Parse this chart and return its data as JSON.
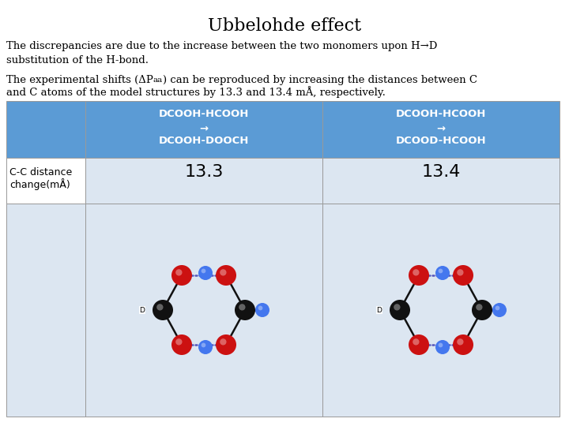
{
  "title": "Ubbelohde effect",
  "paragraph1": "The discrepancies are due to the increase between the two monomers upon H→D\nsubstitution of the H-bond.",
  "para2_prefix": "The experimental shifts (ΔP",
  "para2_sub": "aa",
  "para2_suffix": ") can be reproduced by increasing the distances between C\nand C atoms of the model structures by 13.3 and 13.4 mÅ, respectively.",
  "col1_header_line1": "DCOOH-HCOOH",
  "col1_header_line2": "→",
  "col1_header_line3": "DCOOH-DOOCH",
  "col2_header_line1": "DCOOH-HCOOH",
  "col2_header_line2": "→",
  "col2_header_line3": "DCOOD-HCOOH",
  "row_label_line1": "C-C distance",
  "row_label_line2": "change(mÅ)",
  "value1": "13.3",
  "value2": "13.4",
  "header_bg": "#5b9bd5",
  "header_text": "#ffffff",
  "row_bg": "#dce6f1",
  "image_bg": "#dce6f1",
  "title_fontsize": 16,
  "body_fontsize": 9.5,
  "table_header_fontsize": 9.5,
  "table_value_fontsize": 16,
  "table_label_fontsize": 9
}
